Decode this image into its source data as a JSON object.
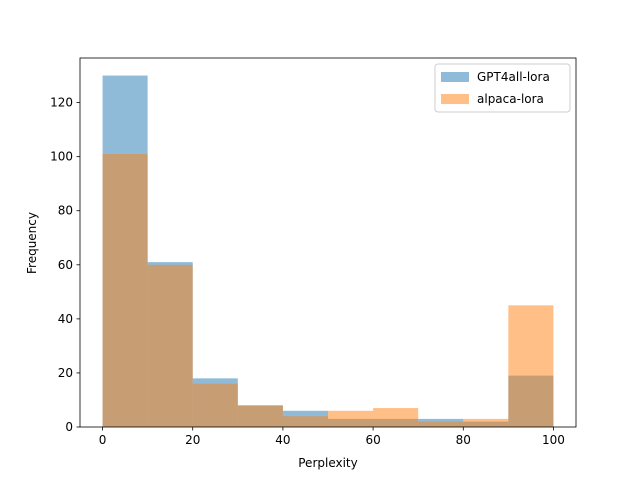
{
  "chart_data": {
    "type": "histogram",
    "xlabel": "Perplexity",
    "ylabel": "Frequency",
    "bins": [
      0,
      10,
      20,
      30,
      40,
      50,
      60,
      70,
      80,
      90,
      100
    ],
    "series": [
      {
        "name": "GPT4all-lora",
        "color": "#1f77b4",
        "values": [
          130,
          61,
          18,
          8,
          6,
          3,
          3,
          3,
          2,
          19
        ]
      },
      {
        "name": "alpaca-lora",
        "color": "#ff7f0e",
        "values": [
          101,
          60,
          16,
          8,
          4,
          6,
          7,
          2,
          3,
          45
        ]
      }
    ],
    "opacity": 0.5,
    "xlim": [
      -5,
      105
    ],
    "xticks": [
      0,
      20,
      40,
      60,
      80,
      100
    ],
    "ylim": [
      0,
      136.5
    ],
    "yticks": [
      0,
      20,
      40,
      60,
      80,
      100,
      120
    ],
    "legend": "upper right"
  }
}
